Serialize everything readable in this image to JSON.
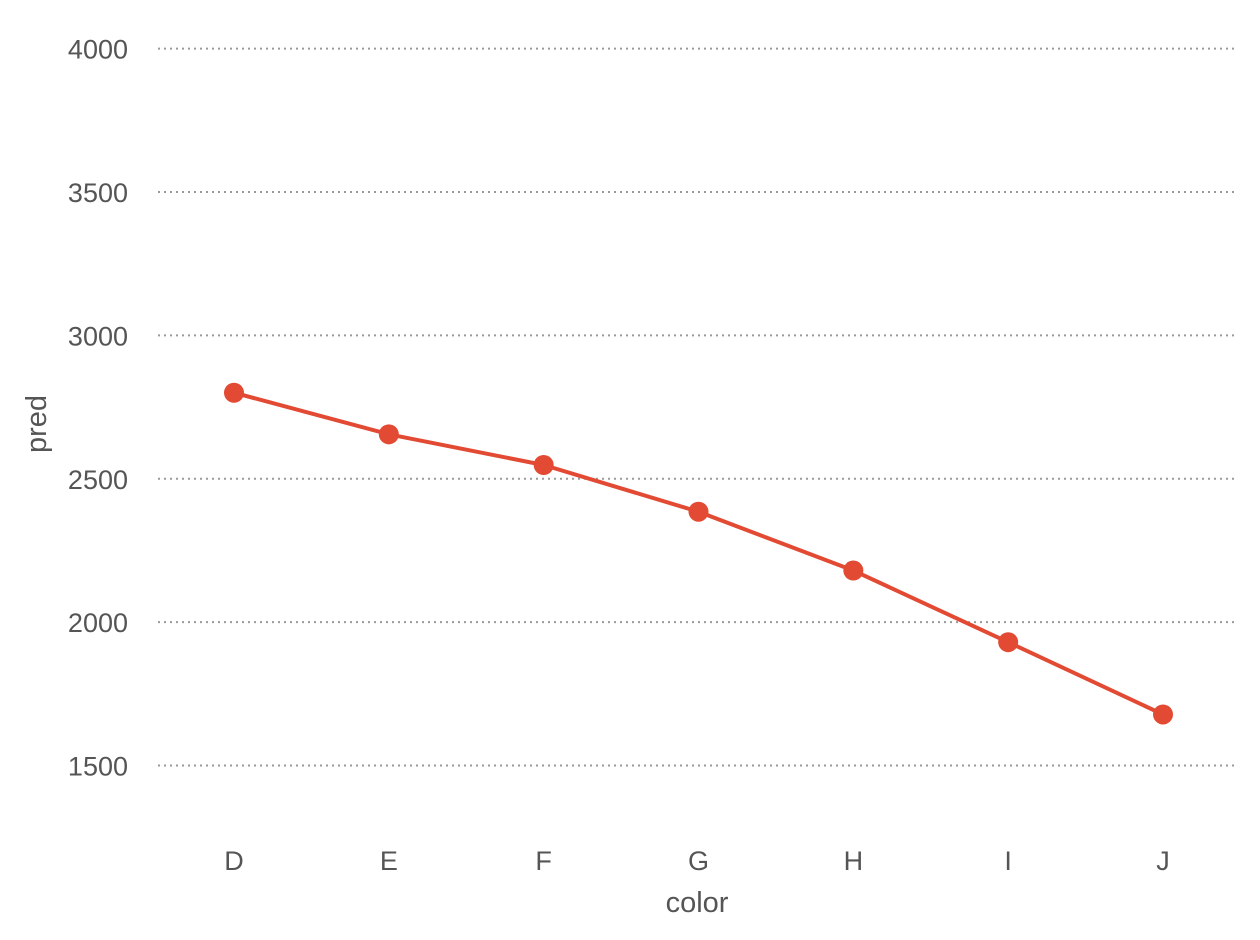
{
  "chart_data": {
    "type": "line",
    "title": "",
    "xlabel": "color",
    "ylabel": "pred",
    "categories": [
      "D",
      "E",
      "F",
      "G",
      "H",
      "I",
      "J"
    ],
    "series": [
      {
        "values": [
          2800,
          2655,
          2548,
          2385,
          2180,
          1930,
          1678
        ]
      }
    ],
    "yticks": [
      "1500",
      "2000",
      "2500",
      "3000",
      "3500",
      "4000"
    ],
    "ylim": [
      1275,
      4100
    ],
    "grid": "horizontal-dotted",
    "legend": "none",
    "colors": {
      "series": "#e24a33",
      "grid": "#9a9a9a",
      "text": "#555555"
    }
  }
}
